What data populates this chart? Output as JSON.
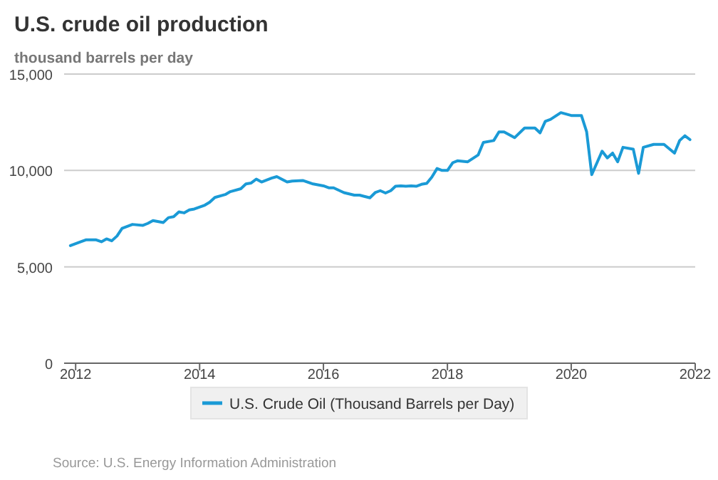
{
  "chart_data": {
    "type": "line",
    "title": "U.S. crude oil production",
    "subtitle": "thousand barrels per day",
    "x": [
      "2011-12",
      "2012-02",
      "2012-03",
      "2012-05",
      "2012-06",
      "2012-07",
      "2012-08",
      "2012-09",
      "2012-10",
      "2012-12",
      "2013-02",
      "2013-03",
      "2013-04",
      "2013-06",
      "2013-07",
      "2013-08",
      "2013-09",
      "2013-10",
      "2013-11",
      "2013-12",
      "2014-02",
      "2014-03",
      "2014-04",
      "2014-06",
      "2014-07",
      "2014-09",
      "2014-10",
      "2014-11",
      "2014-12",
      "2015-01",
      "2015-03",
      "2015-04",
      "2015-06",
      "2015-07",
      "2015-09",
      "2015-11",
      "2016-01",
      "2016-02",
      "2016-03",
      "2016-05",
      "2016-07",
      "2016-08",
      "2016-10",
      "2016-11",
      "2016-12",
      "2017-01",
      "2017-02",
      "2017-03",
      "2017-04",
      "2017-05",
      "2017-06",
      "2017-07",
      "2017-08",
      "2017-09",
      "2017-10",
      "2017-11",
      "2017-12",
      "2018-01",
      "2018-02",
      "2018-03",
      "2018-05",
      "2018-07",
      "2018-08",
      "2018-10",
      "2018-11",
      "2018-12",
      "2019-02",
      "2019-04",
      "2019-06",
      "2019-07",
      "2019-08",
      "2019-09",
      "2019-11",
      "2020-01",
      "2020-03",
      "2020-04",
      "2020-05",
      "2020-07",
      "2020-08",
      "2020-09",
      "2020-10",
      "2020-11",
      "2021-01",
      "2021-02",
      "2021-03",
      "2021-05",
      "2021-06",
      "2021-07",
      "2021-09",
      "2021-10",
      "2021-11",
      "2021-12"
    ],
    "series": [
      {
        "name": "U.S. Crude Oil (Thousand Barrels per Day)",
        "color": "#1a9ad6",
        "values": [
          6100,
          6300,
          6400,
          6400,
          6300,
          6450,
          6350,
          6600,
          7000,
          7200,
          7150,
          7250,
          7400,
          7300,
          7550,
          7600,
          7850,
          7800,
          7950,
          8000,
          8200,
          8350,
          8600,
          8750,
          8900,
          9050,
          9300,
          9350,
          9550,
          9400,
          9600,
          9680,
          9400,
          9450,
          9480,
          9300,
          9200,
          9100,
          9100,
          8850,
          8720,
          8720,
          8580,
          8850,
          8950,
          8830,
          8950,
          9180,
          9200,
          9180,
          9200,
          9180,
          9280,
          9330,
          9650,
          10100,
          10000,
          10000,
          10400,
          10500,
          10450,
          10800,
          11450,
          11550,
          12000,
          12000,
          11700,
          12200,
          12200,
          11950,
          12550,
          12650,
          13000,
          12850,
          12850,
          12000,
          9780,
          11000,
          10650,
          10900,
          10450,
          11200,
          11100,
          9850,
          11200,
          11350,
          11350,
          11350,
          10900,
          11550,
          11800,
          11600
        ]
      }
    ],
    "xlim": [
      "2011-10-25",
      "2022-01-01"
    ],
    "xticks": [
      "2012",
      "2014",
      "2016",
      "2018",
      "2020",
      "2022"
    ],
    "ylim": [
      0,
      15000
    ],
    "yticks": [
      {
        "value": 0,
        "label": "0"
      },
      {
        "value": 5000,
        "label": "5,000"
      },
      {
        "value": 10000,
        "label": "10,000"
      },
      {
        "value": 15000,
        "label": "15,000"
      }
    ],
    "grid": "y",
    "legend": "bottom",
    "annotations": [
      "Source: U.S. Energy Information Administration"
    ]
  }
}
